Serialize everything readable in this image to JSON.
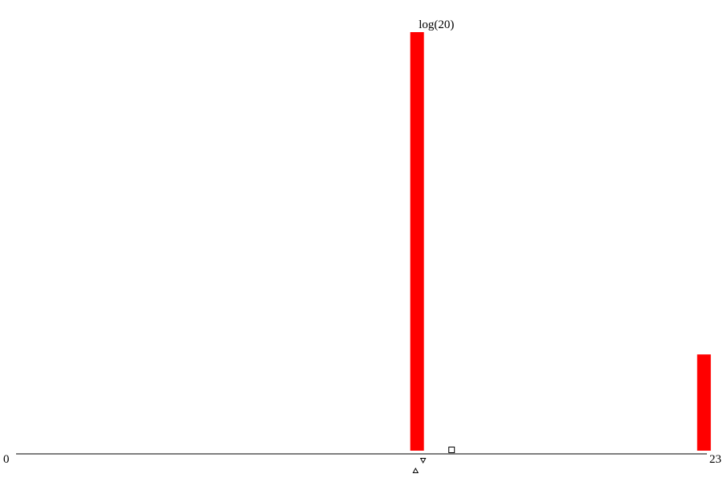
{
  "chart_data": {
    "type": "bar",
    "x_min_label": "0",
    "x_max_label": "23",
    "xlim": [
      0,
      23
    ],
    "bar_color": "#ff0000",
    "bars": [
      {
        "x": 13.35,
        "value": 1.0,
        "label": "log(20)"
      },
      {
        "x": 22.9,
        "value": 0.23,
        "label": ""
      }
    ],
    "markers": [
      {
        "symbol": "triangle-up",
        "x": 13.3
      },
      {
        "symbol": "triangle-down",
        "x": 13.55
      },
      {
        "symbol": "square",
        "x": 14.5
      }
    ]
  }
}
